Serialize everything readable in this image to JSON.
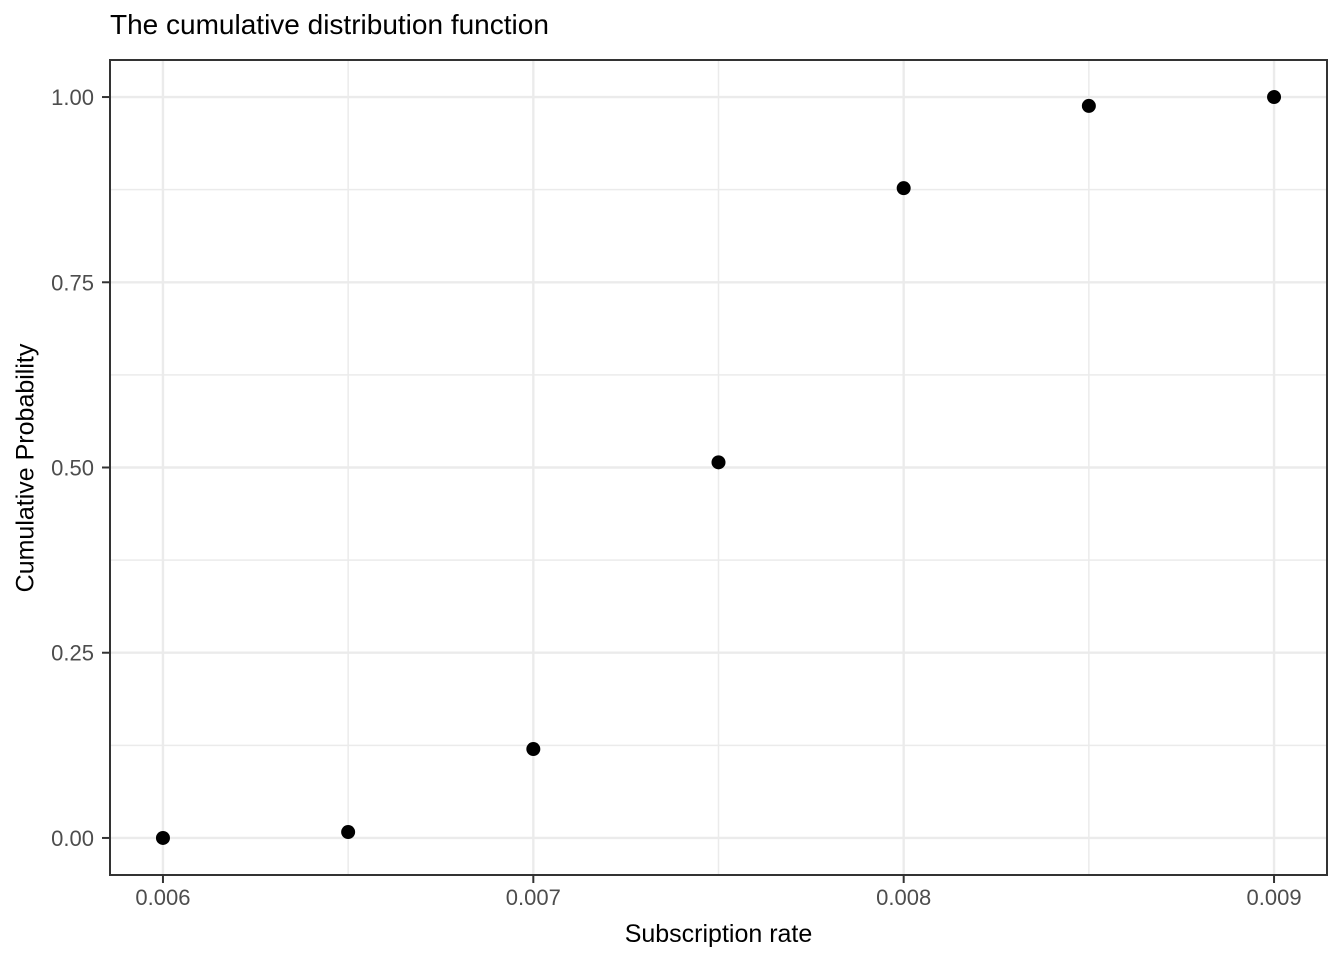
{
  "chart_data": {
    "type": "scatter",
    "title": "The cumulative distribution function",
    "xlabel": "Subscription rate",
    "ylabel": "Cumulative Probability",
    "points": [
      {
        "x": 0.006,
        "y": 0.0
      },
      {
        "x": 0.0065,
        "y": 0.008
      },
      {
        "x": 0.007,
        "y": 0.12
      },
      {
        "x": 0.0075,
        "y": 0.507
      },
      {
        "x": 0.008,
        "y": 0.877
      },
      {
        "x": 0.0085,
        "y": 0.988
      },
      {
        "x": 0.009,
        "y": 1.0
      }
    ],
    "x_ticks": {
      "values": [
        0.006,
        0.007,
        0.008,
        0.009
      ],
      "labels": [
        "0.006",
        "0.007",
        "0.008",
        "0.009"
      ]
    },
    "y_ticks": {
      "values": [
        0.0,
        0.25,
        0.5,
        0.75,
        1.0
      ],
      "labels": [
        "0.00",
        "0.25",
        "0.50",
        "0.75",
        "1.00"
      ]
    },
    "x_minor_gridlines": [
      0.0065,
      0.0075,
      0.0085
    ],
    "y_minor_gridlines": [
      0.125,
      0.375,
      0.625,
      0.875
    ],
    "xlim": [
      0.005857,
      0.009143
    ],
    "ylim": [
      -0.05,
      1.05
    ],
    "grid": true,
    "legend": "none",
    "style": {
      "point_color": "#000000",
      "point_radius_px": 7,
      "grid_major_color": "#EBEBEB",
      "grid_minor_color": "#EBEBEB",
      "panel_border_color": "#333333",
      "tick_color": "#333333",
      "tick_label_color": "#4D4D4D",
      "title_color": "#000000",
      "axis_title_color": "#000000",
      "panel_background": "#FFFFFF",
      "figure_background": "#FFFFFF"
    }
  }
}
